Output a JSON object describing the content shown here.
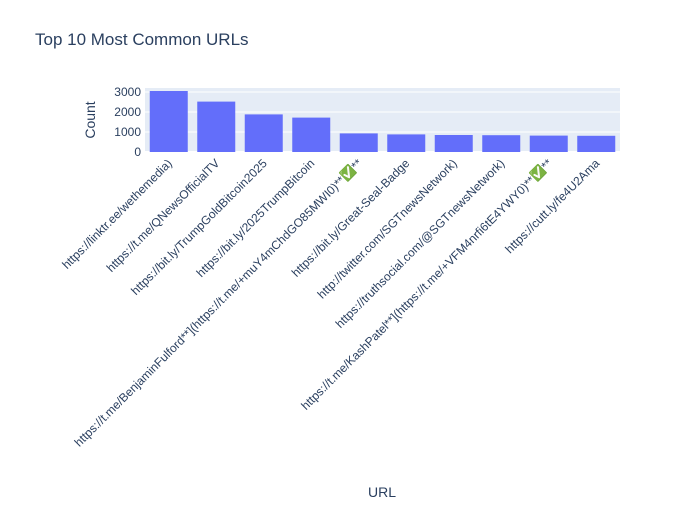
{
  "chart_data": {
    "type": "bar",
    "title": "Top 10 Most Common URLs",
    "xlabel": "URL",
    "ylabel": "Count",
    "categories": [
      "https://linktr.ee/wethemedia)",
      "https://t.me/QNewsOfficialTV",
      "https://bit.ly/TrumpGoldBitcoin2025",
      "https://bit.ly/2025TrumpBitcoin",
      "https://t.me/BenjaminFulford**](https://t.me/+muY4mChdGO85MWI0)**✅**",
      "https://bit.ly/Great-Seal-Badge",
      "http://twitter.com/SGTnewsNetwork)",
      "https://truthsocial.com/@SGTnewsNetwork)",
      "https://t.me/KashPatel**](https://t.me/+VFM4nrfi6tE4YWY0)**✅**",
      "https://cutt.ly/fe4U2Ama"
    ],
    "values": [
      3050,
      2520,
      1880,
      1720,
      930,
      880,
      850,
      840,
      820,
      810
    ],
    "yticks": [
      0,
      1000,
      2000,
      3000
    ],
    "ytick_labels": [
      "0",
      "1000",
      "2000",
      "3000"
    ],
    "ylim": [
      0,
      3200
    ],
    "bar_color": "#636efa",
    "plot_bg": "#e5ecf6",
    "grid": true
  }
}
